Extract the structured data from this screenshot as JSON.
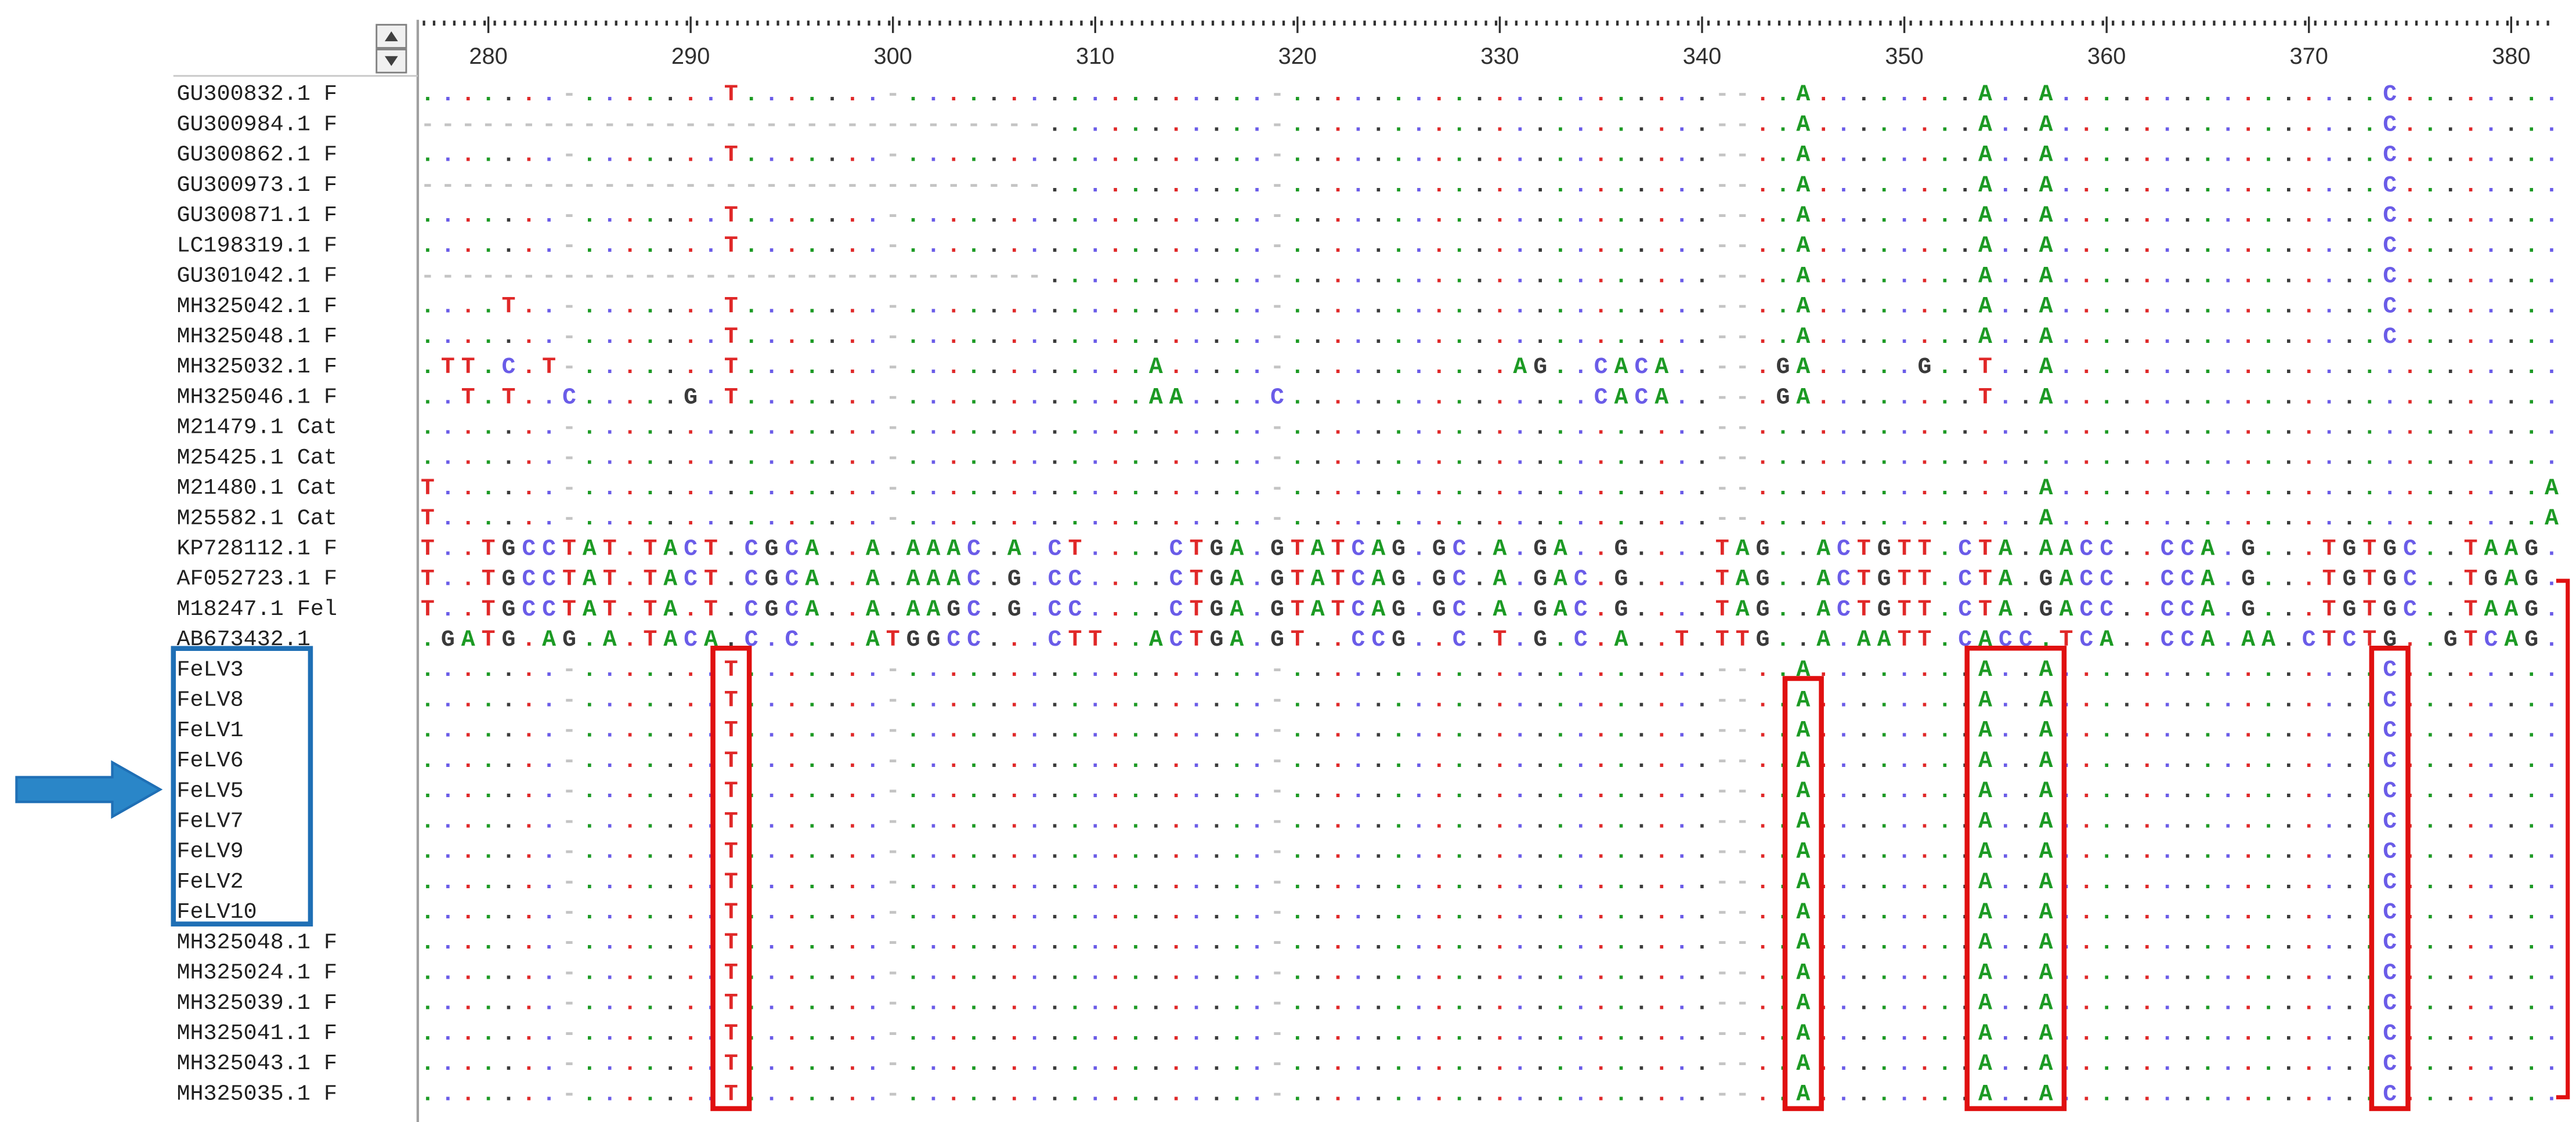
{
  "ruler": [
    280,
    290,
    300,
    310,
    320,
    330,
    340,
    350,
    360,
    370,
    380
  ],
  "rows": [
    {
      "name": "GU300832.1 F",
      "seq": ".......-.......T.......-..................-.....................--..A........A..A................C........"
    },
    {
      "name": "GU300984.1 F",
      "seq": "-------------------------------...........-.....................--..A........A..A................C........"
    },
    {
      "name": "GU300862.1 F",
      "seq": ".......-.......T.......-..................-.....................--..A........A..A................C........"
    },
    {
      "name": "GU300973.1 F",
      "seq": "-------------------------------...........-.....................--..A........A..A................C........"
    },
    {
      "name": "GU300871.1 F",
      "seq": ".......-.......T.......-..................-.....................--..A........A..A................C........"
    },
    {
      "name": "LC198319.1 F",
      "seq": ".......-.......T.......-..................-.....................--..A........A..A................C........"
    },
    {
      "name": "GU301042.1 F",
      "seq": "-------------------------------...........-.....................--..A........A..A................C........"
    },
    {
      "name": "MH325042.1 F",
      "seq": "....T..-.......T.......-..................-.....................--..A........A..A................C........"
    },
    {
      "name": "MH325048.1 F",
      "seq": ".......-.......T.......-..................-.....................--..A........A..A................C........"
    },
    {
      "name": "MH325032.1 F",
      "seq": ".TT.C.T-.......T.......-............A.....-...........AG..CACA..--.GA.....G..T..A........................."
    },
    {
      "name": "MH325046.1 F",
      "seq": "..T.T..C.....G.T.......-............AA....C...............CACA..--.GA........T..A........................."
    },
    {
      "name": "M21479.1 Cat",
      "seq": ".......-...............-..................-.....................--........................................"
    },
    {
      "name": "M25425.1 Cat",
      "seq": ".......-...............-..................-.....................--........................................"
    },
    {
      "name": "M21480.1 Cat",
      "seq": "T......-...............-..................-.....................--..............A........................A"
    },
    {
      "name": "M25582.1 Cat",
      "seq": "T......-...............-..................-.....................--..............A........................A"
    },
    {
      "name": "KP728112.1 F",
      "seq": "T..TGCCTAT.TACT.CGCA..A.AAAC.A.CT....CTGA.GTATCAG.GC.A.GA..G....TAG..ACTGTT.CTA.AACC..CCA.G...TGTGC..TAAG."
    },
    {
      "name": "AF052723.1 F",
      "seq": "T..TGCCTAT.TACT.CGCA..A.AAAC.G.CC....CTGA.GTATCAG.GC.A.GAC.G....TAG..ACTGTT.CTA.GACC..CCA.G...TGTGC..TGAG."
    },
    {
      "name": "M18247.1 Fel",
      "seq": "T..TGCCTAT.TA.T.CGCA..A.AAGC.G.CC....CTGA.GTATCAG.GC.A.GAC.G....TAG..ACTGTT.CTA.GACC..CCA.G...TGTGC..TAAG."
    },
    {
      "name": "AB673432.1",
      "seq": ".GATG.AG.A.TACA.C.C...ATGGCC...CTT..ACTGA.GT..CCG..C.T.G.C.A..T.TTG..A.AATT.CACC.TCA..CCA.AA.CTCTG..GTCAG."
    },
    {
      "name": "FeLV3",
      "seq": ".......-.......T.......-..................-.....................--..A........A..A................C........"
    },
    {
      "name": "FeLV8",
      "seq": ".......-.......T.......-..................-.....................--..A........A..A................C........"
    },
    {
      "name": "FeLV1",
      "seq": ".......-.......T.......-..................-.....................--..A........A..A................C........"
    },
    {
      "name": "FeLV6",
      "seq": ".......-.......T.......-..................-.....................--..A........A..A................C........"
    },
    {
      "name": "FeLV5",
      "seq": ".......-.......T.......-..................-.....................--..A........A..A................C........"
    },
    {
      "name": "FeLV7",
      "seq": ".......-.......T.......-..................-.....................--..A........A..A................C........"
    },
    {
      "name": "FeLV9",
      "seq": ".......-.......T.......-..................-.....................--..A........A..A................C........"
    },
    {
      "name": "FeLV2",
      "seq": ".......-.......T.......-..................-.....................--..A........A..A................C........"
    },
    {
      "name": "FeLV10",
      "seq": ".......-.......T.......-..................-.....................--..A........A..A................C........"
    },
    {
      "name": "MH325048.1 F",
      "seq": ".......-.......T.......-..................-.....................--..A........A..A................C........"
    },
    {
      "name": "MH325024.1 F",
      "seq": ".......-.......T.......-..................-.....................--..A........A..A................C........"
    },
    {
      "name": "MH325039.1 F",
      "seq": ".......-.......T.......-..................-.....................--..A........A..A................C........"
    },
    {
      "name": "MH325041.1 F",
      "seq": ".......-.......T.......-..................-.....................--..A........A..A................C........"
    },
    {
      "name": "MH325043.1 F",
      "seq": ".......-.......T.......-..................-.....................--..A........A..A................C........"
    },
    {
      "name": "MH325035.1 F",
      "seq": ".......-.......T.......-..................-.....................--..A........A..A................C........"
    }
  ]
}
